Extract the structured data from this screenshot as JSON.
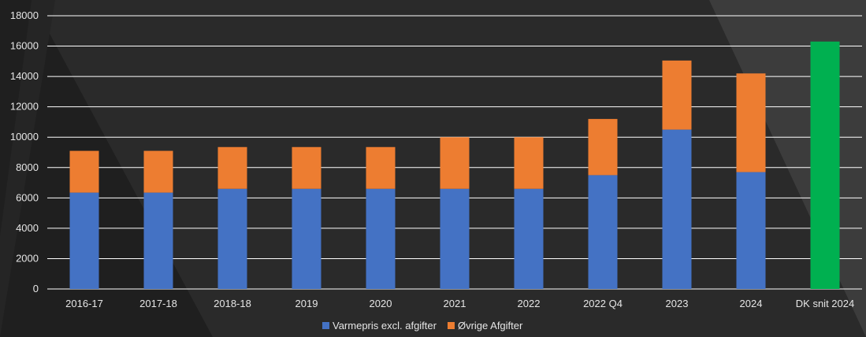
{
  "chart_data": {
    "type": "bar",
    "stacked": true,
    "categories": [
      "2016-17",
      "2017-18",
      "2018-18",
      "2019",
      "2020",
      "2021",
      "2022",
      "2022 Q4",
      "2023",
      "2024",
      "DK snit 2024"
    ],
    "series": [
      {
        "name": "Varmepris excl. afgifter",
        "color": "#4472c4",
        "values": [
          6350,
          6350,
          6600,
          6600,
          6600,
          6600,
          6600,
          7500,
          10500,
          7700,
          null
        ]
      },
      {
        "name": "Øvrige Afgifter",
        "color": "#ed7d31",
        "values": [
          2750,
          2750,
          2750,
          2750,
          2750,
          3400,
          3400,
          3700,
          4550,
          6500,
          null
        ]
      },
      {
        "name": "",
        "color": "#00b050",
        "values": [
          null,
          null,
          null,
          null,
          null,
          null,
          null,
          null,
          null,
          null,
          16300
        ]
      }
    ],
    "legend": {
      "placement": "bottom",
      "entries": [
        "Varmepris excl. afgifter",
        "Øvrige Afgifter"
      ]
    },
    "ylim": [
      0,
      18000
    ],
    "yticks": [
      0,
      2000,
      4000,
      6000,
      8000,
      10000,
      12000,
      14000,
      16000,
      18000
    ],
    "grid": true,
    "title": "",
    "xlabel": "",
    "ylabel": "",
    "colors": {
      "background": "#1f1f1f",
      "gridline": "#ffffff",
      "text": "#e6e6e6"
    }
  }
}
